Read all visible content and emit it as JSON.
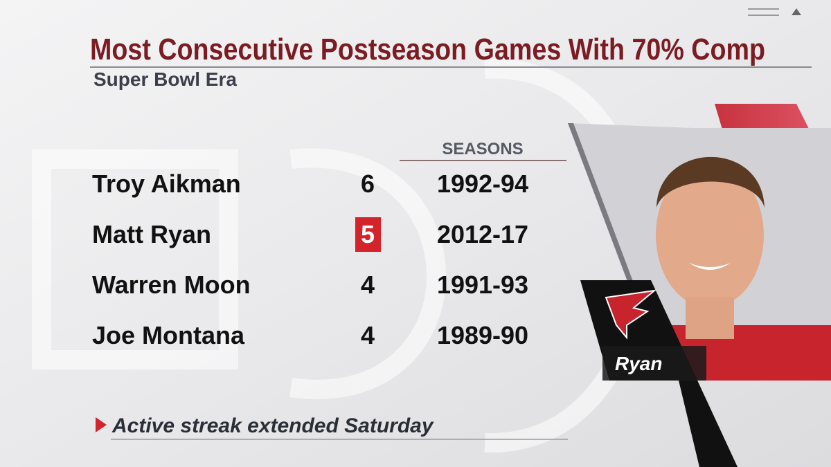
{
  "header": {
    "title": "Most Consecutive Postseason Games With 70% Comp",
    "subtitle": "Super Bowl Era"
  },
  "table": {
    "columns": [
      "SEASONS"
    ],
    "rows": [
      {
        "name": "Troy Aikman",
        "games": 6,
        "seasons": "1992-94"
      },
      {
        "name": "Matt Ryan",
        "games": 5,
        "seasons": "2012-17",
        "highlight": true
      },
      {
        "name": "Warren Moon",
        "games": 4,
        "seasons": "1991-93"
      },
      {
        "name": "Joe Montana",
        "games": 4,
        "seasons": "1989-90"
      }
    ]
  },
  "footnote": "Active streak extended Saturday",
  "player_label": "Ryan"
}
